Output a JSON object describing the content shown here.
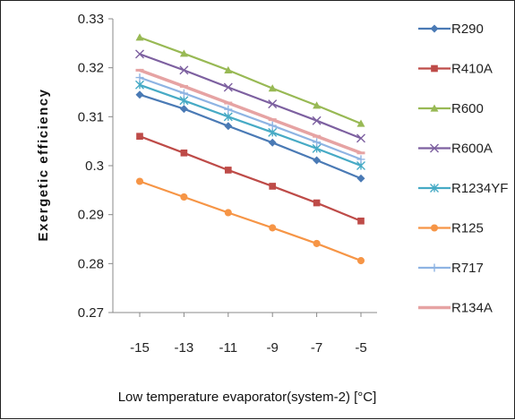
{
  "chart_data": {
    "type": "line",
    "title": "",
    "xlabel": "Low temperature evaporator(system-2) [°C]",
    "ylabel": "Exergetic efficiency",
    "categories": [
      "-15",
      "-13",
      "-11",
      "-9",
      "-7",
      "-5"
    ],
    "y_ticks": [
      "0.33",
      "0.32",
      "0.31",
      "0.3",
      "0.29",
      "0.28",
      "0.27"
    ],
    "ylim": [
      0.27,
      0.33
    ],
    "grid": false,
    "legend_position": "right",
    "series": [
      {
        "name": "R290",
        "color": "#4a7ab5",
        "marker": "diamond",
        "values": [
          0.3145,
          0.3116,
          0.3081,
          0.3047,
          0.3011,
          0.2974
        ]
      },
      {
        "name": "R410A",
        "color": "#be4b48",
        "marker": "square",
        "values": [
          0.306,
          0.3026,
          0.2991,
          0.2958,
          0.2924,
          0.2887
        ]
      },
      {
        "name": "R600",
        "color": "#98b954",
        "marker": "triangle",
        "values": [
          0.3262,
          0.3229,
          0.3195,
          0.3158,
          0.3123,
          0.3086
        ]
      },
      {
        "name": "R600A",
        "color": "#7d60a0",
        "marker": "x",
        "values": [
          0.3228,
          0.3195,
          0.316,
          0.3126,
          0.3092,
          0.3056
        ]
      },
      {
        "name": "R1234YF",
        "color": "#46aac5",
        "marker": "star",
        "values": [
          0.3165,
          0.3133,
          0.31,
          0.3068,
          0.3035,
          0.3
        ]
      },
      {
        "name": "R125",
        "color": "#f69546",
        "marker": "circle",
        "values": [
          0.2968,
          0.2936,
          0.2904,
          0.2873,
          0.2841,
          0.2806
        ]
      },
      {
        "name": "R717",
        "color": "#8eb4e3",
        "marker": "plus",
        "values": [
          0.318,
          0.3148,
          0.3115,
          0.3082,
          0.3048,
          0.3013
        ]
      },
      {
        "name": "R134A",
        "color": "#e6a3a3",
        "marker": "dash",
        "values": [
          0.3195,
          0.3162,
          0.3128,
          0.3094,
          0.306,
          0.3026
        ]
      }
    ]
  }
}
